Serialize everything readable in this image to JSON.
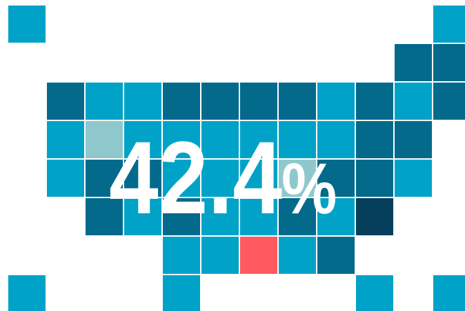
{
  "headline": {
    "value": "42.4",
    "unit": "%"
  }
}
